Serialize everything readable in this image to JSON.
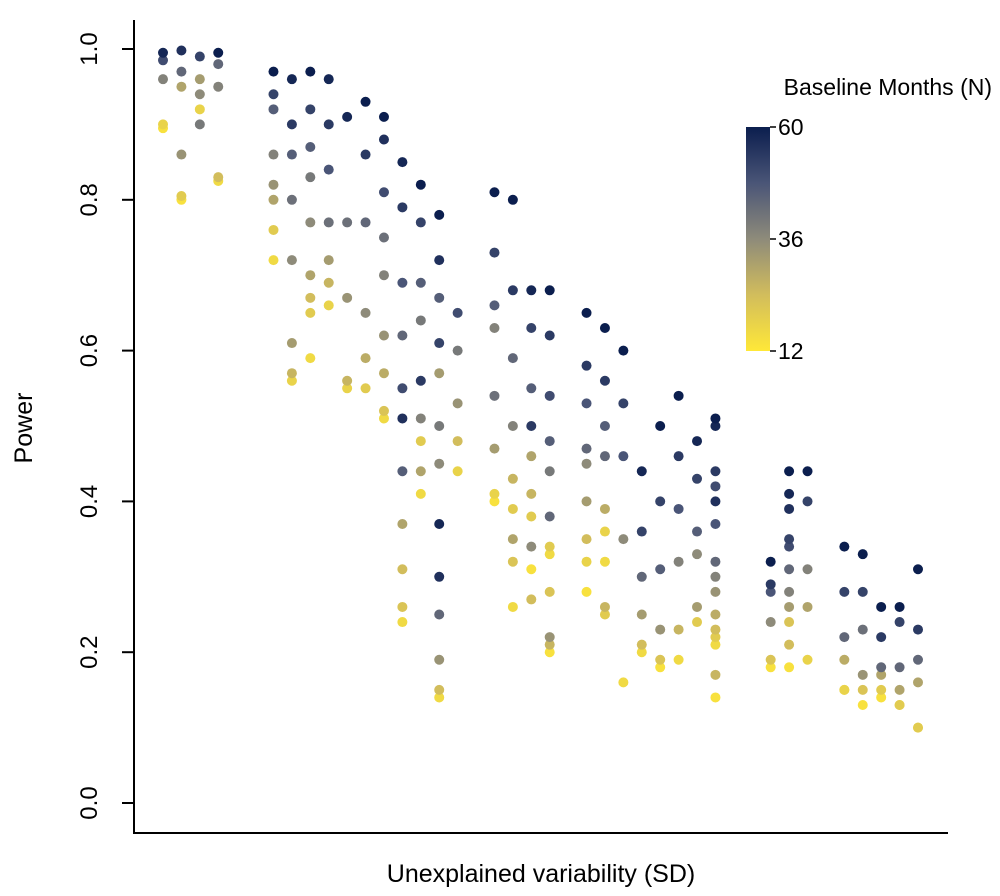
{
  "chart_data": {
    "type": "scatter",
    "title": "",
    "xlabel": "Unexplained variability (SD)",
    "ylabel": "Power",
    "ylim": [
      0,
      1.04
    ],
    "xlim": [
      0,
      42
    ],
    "y_ticks": [
      "0.0",
      "0.2",
      "0.4",
      "0.6",
      "0.8",
      "1.0"
    ],
    "y_tick_values": [
      0,
      0.2,
      0.4,
      0.6,
      0.8,
      1.0
    ],
    "grid": false,
    "legend": {
      "title": "Baseline Months (N)",
      "type": "colorbar",
      "placement": "top-right",
      "min": 12,
      "max": 60,
      "ticks": [
        "60",
        "36",
        "12"
      ],
      "tick_values": [
        60,
        36,
        12
      ],
      "colors": {
        "low": "#ffe838",
        "mid": "#8e8b7a",
        "high": "#0b1e4e"
      }
    },
    "color_variable": "Baseline Months (N)",
    "points": [
      {
        "x": 1,
        "y": 0.995,
        "n": 58
      },
      {
        "x": 1,
        "y": 0.985,
        "n": 50
      },
      {
        "x": 1,
        "y": 0.96,
        "n": 38
      },
      {
        "x": 1,
        "y": 0.9,
        "n": 18
      },
      {
        "x": 1,
        "y": 0.895,
        "n": 14
      },
      {
        "x": 2,
        "y": 0.998,
        "n": 56
      },
      {
        "x": 2,
        "y": 0.97,
        "n": 44
      },
      {
        "x": 2,
        "y": 0.95,
        "n": 30
      },
      {
        "x": 2,
        "y": 0.86,
        "n": 34
      },
      {
        "x": 2,
        "y": 0.805,
        "n": 20
      },
      {
        "x": 2,
        "y": 0.8,
        "n": 14
      },
      {
        "x": 3,
        "y": 0.99,
        "n": 52
      },
      {
        "x": 3,
        "y": 0.96,
        "n": 32
      },
      {
        "x": 3,
        "y": 0.94,
        "n": 36
      },
      {
        "x": 3,
        "y": 0.92,
        "n": 18
      },
      {
        "x": 3,
        "y": 0.9,
        "n": 40
      },
      {
        "x": 4,
        "y": 0.995,
        "n": 60
      },
      {
        "x": 4,
        "y": 0.98,
        "n": 44
      },
      {
        "x": 4,
        "y": 0.95,
        "n": 38
      },
      {
        "x": 4,
        "y": 0.83,
        "n": 24
      },
      {
        "x": 4,
        "y": 0.825,
        "n": 16
      },
      {
        "x": 7,
        "y": 0.97,
        "n": 60
      },
      {
        "x": 7,
        "y": 0.94,
        "n": 52
      },
      {
        "x": 7,
        "y": 0.92,
        "n": 46
      },
      {
        "x": 7,
        "y": 0.86,
        "n": 38
      },
      {
        "x": 7,
        "y": 0.82,
        "n": 34
      },
      {
        "x": 7,
        "y": 0.8,
        "n": 30
      },
      {
        "x": 7,
        "y": 0.76,
        "n": 20
      },
      {
        "x": 7,
        "y": 0.72,
        "n": 16
      },
      {
        "x": 8,
        "y": 0.96,
        "n": 58
      },
      {
        "x": 8,
        "y": 0.9,
        "n": 54
      },
      {
        "x": 8,
        "y": 0.86,
        "n": 46
      },
      {
        "x": 8,
        "y": 0.8,
        "n": 42
      },
      {
        "x": 8,
        "y": 0.72,
        "n": 36
      },
      {
        "x": 8,
        "y": 0.61,
        "n": 32
      },
      {
        "x": 8,
        "y": 0.57,
        "n": 26
      },
      {
        "x": 8,
        "y": 0.56,
        "n": 18
      },
      {
        "x": 9,
        "y": 0.97,
        "n": 60
      },
      {
        "x": 9,
        "y": 0.92,
        "n": 52
      },
      {
        "x": 9,
        "y": 0.87,
        "n": 46
      },
      {
        "x": 9,
        "y": 0.83,
        "n": 40
      },
      {
        "x": 9,
        "y": 0.77,
        "n": 36
      },
      {
        "x": 9,
        "y": 0.7,
        "n": 30
      },
      {
        "x": 9,
        "y": 0.67,
        "n": 24
      },
      {
        "x": 9,
        "y": 0.65,
        "n": 20
      },
      {
        "x": 9,
        "y": 0.59,
        "n": 16
      },
      {
        "x": 10,
        "y": 0.96,
        "n": 58
      },
      {
        "x": 10,
        "y": 0.9,
        "n": 54
      },
      {
        "x": 10,
        "y": 0.84,
        "n": 48
      },
      {
        "x": 10,
        "y": 0.77,
        "n": 42
      },
      {
        "x": 10,
        "y": 0.72,
        "n": 32
      },
      {
        "x": 10,
        "y": 0.69,
        "n": 26
      },
      {
        "x": 10,
        "y": 0.66,
        "n": 18
      },
      {
        "x": 11,
        "y": 0.91,
        "n": 58
      },
      {
        "x": 11,
        "y": 0.77,
        "n": 42
      },
      {
        "x": 11,
        "y": 0.67,
        "n": 34
      },
      {
        "x": 11,
        "y": 0.56,
        "n": 26
      },
      {
        "x": 11,
        "y": 0.55,
        "n": 18
      },
      {
        "x": 12,
        "y": 0.93,
        "n": 60
      },
      {
        "x": 12,
        "y": 0.86,
        "n": 54
      },
      {
        "x": 12,
        "y": 0.77,
        "n": 44
      },
      {
        "x": 12,
        "y": 0.65,
        "n": 36
      },
      {
        "x": 12,
        "y": 0.59,
        "n": 28
      },
      {
        "x": 12,
        "y": 0.55,
        "n": 20
      },
      {
        "x": 13,
        "y": 0.91,
        "n": 60
      },
      {
        "x": 13,
        "y": 0.88,
        "n": 56
      },
      {
        "x": 13,
        "y": 0.81,
        "n": 50
      },
      {
        "x": 13,
        "y": 0.75,
        "n": 42
      },
      {
        "x": 13,
        "y": 0.7,
        "n": 38
      },
      {
        "x": 13,
        "y": 0.62,
        "n": 34
      },
      {
        "x": 13,
        "y": 0.57,
        "n": 28
      },
      {
        "x": 13,
        "y": 0.52,
        "n": 22
      },
      {
        "x": 13,
        "y": 0.51,
        "n": 16
      },
      {
        "x": 14,
        "y": 0.85,
        "n": 58
      },
      {
        "x": 14,
        "y": 0.79,
        "n": 54
      },
      {
        "x": 14,
        "y": 0.69,
        "n": 48
      },
      {
        "x": 14,
        "y": 0.62,
        "n": 44
      },
      {
        "x": 14,
        "y": 0.55,
        "n": 50
      },
      {
        "x": 14,
        "y": 0.51,
        "n": 56
      },
      {
        "x": 14,
        "y": 0.44,
        "n": 46
      },
      {
        "x": 14,
        "y": 0.37,
        "n": 30
      },
      {
        "x": 14,
        "y": 0.31,
        "n": 24
      },
      {
        "x": 14,
        "y": 0.26,
        "n": 22
      },
      {
        "x": 14,
        "y": 0.24,
        "n": 16
      },
      {
        "x": 15,
        "y": 0.82,
        "n": 60
      },
      {
        "x": 15,
        "y": 0.77,
        "n": 52
      },
      {
        "x": 15,
        "y": 0.69,
        "n": 46
      },
      {
        "x": 15,
        "y": 0.64,
        "n": 40
      },
      {
        "x": 15,
        "y": 0.56,
        "n": 54
      },
      {
        "x": 15,
        "y": 0.51,
        "n": 38
      },
      {
        "x": 15,
        "y": 0.48,
        "n": 20
      },
      {
        "x": 15,
        "y": 0.44,
        "n": 30
      },
      {
        "x": 15,
        "y": 0.41,
        "n": 16
      },
      {
        "x": 16,
        "y": 0.78,
        "n": 60
      },
      {
        "x": 16,
        "y": 0.72,
        "n": 56
      },
      {
        "x": 16,
        "y": 0.67,
        "n": 46
      },
      {
        "x": 16,
        "y": 0.61,
        "n": 52
      },
      {
        "x": 16,
        "y": 0.57,
        "n": 32
      },
      {
        "x": 16,
        "y": 0.5,
        "n": 40
      },
      {
        "x": 16,
        "y": 0.45,
        "n": 36
      },
      {
        "x": 16,
        "y": 0.37,
        "n": 58
      },
      {
        "x": 16,
        "y": 0.3,
        "n": 56
      },
      {
        "x": 16,
        "y": 0.25,
        "n": 44
      },
      {
        "x": 16,
        "y": 0.19,
        "n": 34
      },
      {
        "x": 16,
        "y": 0.15,
        "n": 24
      },
      {
        "x": 16,
        "y": 0.14,
        "n": 16
      },
      {
        "x": 17,
        "y": 0.65,
        "n": 50
      },
      {
        "x": 17,
        "y": 0.6,
        "n": 40
      },
      {
        "x": 17,
        "y": 0.53,
        "n": 34
      },
      {
        "x": 17,
        "y": 0.48,
        "n": 24
      },
      {
        "x": 17,
        "y": 0.44,
        "n": 18
      },
      {
        "x": 19,
        "y": 0.81,
        "n": 60
      },
      {
        "x": 19,
        "y": 0.73,
        "n": 52
      },
      {
        "x": 19,
        "y": 0.66,
        "n": 46
      },
      {
        "x": 19,
        "y": 0.63,
        "n": 38
      },
      {
        "x": 19,
        "y": 0.54,
        "n": 42
      },
      {
        "x": 19,
        "y": 0.47,
        "n": 32
      },
      {
        "x": 19,
        "y": 0.41,
        "n": 18
      },
      {
        "x": 19,
        "y": 0.4,
        "n": 14
      },
      {
        "x": 20,
        "y": 0.8,
        "n": 60
      },
      {
        "x": 20,
        "y": 0.68,
        "n": 54
      },
      {
        "x": 20,
        "y": 0.59,
        "n": 44
      },
      {
        "x": 20,
        "y": 0.5,
        "n": 38
      },
      {
        "x": 20,
        "y": 0.43,
        "n": 26
      },
      {
        "x": 20,
        "y": 0.39,
        "n": 20
      },
      {
        "x": 20,
        "y": 0.35,
        "n": 30
      },
      {
        "x": 20,
        "y": 0.32,
        "n": 22
      },
      {
        "x": 20,
        "y": 0.26,
        "n": 16
      },
      {
        "x": 21,
        "y": 0.68,
        "n": 58
      },
      {
        "x": 21,
        "y": 0.63,
        "n": 52
      },
      {
        "x": 21,
        "y": 0.55,
        "n": 46
      },
      {
        "x": 21,
        "y": 0.5,
        "n": 54
      },
      {
        "x": 21,
        "y": 0.46,
        "n": 30
      },
      {
        "x": 21,
        "y": 0.41,
        "n": 26
      },
      {
        "x": 21,
        "y": 0.38,
        "n": 20
      },
      {
        "x": 21,
        "y": 0.34,
        "n": 36
      },
      {
        "x": 21,
        "y": 0.31,
        "n": 14
      },
      {
        "x": 21,
        "y": 0.27,
        "n": 24
      },
      {
        "x": 22,
        "y": 0.68,
        "n": 60
      },
      {
        "x": 22,
        "y": 0.62,
        "n": 54
      },
      {
        "x": 22,
        "y": 0.54,
        "n": 50
      },
      {
        "x": 22,
        "y": 0.48,
        "n": 46
      },
      {
        "x": 22,
        "y": 0.44,
        "n": 40
      },
      {
        "x": 22,
        "y": 0.38,
        "n": 44
      },
      {
        "x": 22,
        "y": 0.34,
        "n": 20
      },
      {
        "x": 22,
        "y": 0.33,
        "n": 16
      },
      {
        "x": 22,
        "y": 0.28,
        "n": 22
      },
      {
        "x": 22,
        "y": 0.22,
        "n": 34
      },
      {
        "x": 22,
        "y": 0.21,
        "n": 26
      },
      {
        "x": 22,
        "y": 0.2,
        "n": 14
      },
      {
        "x": 24,
        "y": 0.65,
        "n": 60
      },
      {
        "x": 24,
        "y": 0.58,
        "n": 54
      },
      {
        "x": 24,
        "y": 0.53,
        "n": 48
      },
      {
        "x": 24,
        "y": 0.47,
        "n": 44
      },
      {
        "x": 24,
        "y": 0.45,
        "n": 36
      },
      {
        "x": 24,
        "y": 0.4,
        "n": 32
      },
      {
        "x": 24,
        "y": 0.35,
        "n": 24
      },
      {
        "x": 24,
        "y": 0.32,
        "n": 18
      },
      {
        "x": 24,
        "y": 0.28,
        "n": 14
      },
      {
        "x": 25,
        "y": 0.63,
        "n": 60
      },
      {
        "x": 25,
        "y": 0.56,
        "n": 54
      },
      {
        "x": 25,
        "y": 0.5,
        "n": 46
      },
      {
        "x": 25,
        "y": 0.46,
        "n": 44
      },
      {
        "x": 25,
        "y": 0.39,
        "n": 28
      },
      {
        "x": 25,
        "y": 0.36,
        "n": 18
      },
      {
        "x": 25,
        "y": 0.32,
        "n": 16
      },
      {
        "x": 25,
        "y": 0.26,
        "n": 26
      },
      {
        "x": 25,
        "y": 0.25,
        "n": 20
      },
      {
        "x": 26,
        "y": 0.6,
        "n": 60
      },
      {
        "x": 26,
        "y": 0.53,
        "n": 52
      },
      {
        "x": 26,
        "y": 0.46,
        "n": 48
      },
      {
        "x": 26,
        "y": 0.35,
        "n": 36
      },
      {
        "x": 26,
        "y": 0.16,
        "n": 16
      },
      {
        "x": 27,
        "y": 0.44,
        "n": 58
      },
      {
        "x": 27,
        "y": 0.36,
        "n": 52
      },
      {
        "x": 27,
        "y": 0.3,
        "n": 44
      },
      {
        "x": 27,
        "y": 0.25,
        "n": 32
      },
      {
        "x": 27,
        "y": 0.21,
        "n": 24
      },
      {
        "x": 27,
        "y": 0.2,
        "n": 16
      },
      {
        "x": 28,
        "y": 0.5,
        "n": 60
      },
      {
        "x": 28,
        "y": 0.4,
        "n": 52
      },
      {
        "x": 28,
        "y": 0.31,
        "n": 46
      },
      {
        "x": 28,
        "y": 0.23,
        "n": 34
      },
      {
        "x": 28,
        "y": 0.19,
        "n": 22
      },
      {
        "x": 28,
        "y": 0.18,
        "n": 14
      },
      {
        "x": 29,
        "y": 0.54,
        "n": 60
      },
      {
        "x": 29,
        "y": 0.46,
        "n": 54
      },
      {
        "x": 29,
        "y": 0.39,
        "n": 48
      },
      {
        "x": 29,
        "y": 0.32,
        "n": 38
      },
      {
        "x": 29,
        "y": 0.23,
        "n": 26
      },
      {
        "x": 29,
        "y": 0.19,
        "n": 16
      },
      {
        "x": 30,
        "y": 0.48,
        "n": 58
      },
      {
        "x": 30,
        "y": 0.43,
        "n": 52
      },
      {
        "x": 30,
        "y": 0.36,
        "n": 46
      },
      {
        "x": 30,
        "y": 0.33,
        "n": 36
      },
      {
        "x": 30,
        "y": 0.26,
        "n": 32
      },
      {
        "x": 30,
        "y": 0.24,
        "n": 20
      },
      {
        "x": 31,
        "y": 0.51,
        "n": 60
      },
      {
        "x": 31,
        "y": 0.5,
        "n": 58
      },
      {
        "x": 31,
        "y": 0.44,
        "n": 54
      },
      {
        "x": 31,
        "y": 0.42,
        "n": 50
      },
      {
        "x": 31,
        "y": 0.4,
        "n": 56
      },
      {
        "x": 31,
        "y": 0.37,
        "n": 48
      },
      {
        "x": 31,
        "y": 0.32,
        "n": 44
      },
      {
        "x": 31,
        "y": 0.3,
        "n": 38
      },
      {
        "x": 31,
        "y": 0.28,
        "n": 34
      },
      {
        "x": 31,
        "y": 0.25,
        "n": 28
      },
      {
        "x": 31,
        "y": 0.23,
        "n": 24
      },
      {
        "x": 31,
        "y": 0.22,
        "n": 20
      },
      {
        "x": 31,
        "y": 0.21,
        "n": 16
      },
      {
        "x": 31,
        "y": 0.17,
        "n": 26
      },
      {
        "x": 31,
        "y": 0.14,
        "n": 14
      },
      {
        "x": 34,
        "y": 0.32,
        "n": 60
      },
      {
        "x": 34,
        "y": 0.29,
        "n": 54
      },
      {
        "x": 34,
        "y": 0.28,
        "n": 48
      },
      {
        "x": 34,
        "y": 0.24,
        "n": 36
      },
      {
        "x": 34,
        "y": 0.19,
        "n": 22
      },
      {
        "x": 34,
        "y": 0.18,
        "n": 14
      },
      {
        "x": 35,
        "y": 0.44,
        "n": 60
      },
      {
        "x": 35,
        "y": 0.41,
        "n": 58
      },
      {
        "x": 35,
        "y": 0.39,
        "n": 56
      },
      {
        "x": 35,
        "y": 0.35,
        "n": 52
      },
      {
        "x": 35,
        "y": 0.34,
        "n": 50
      },
      {
        "x": 35,
        "y": 0.31,
        "n": 44
      },
      {
        "x": 35,
        "y": 0.28,
        "n": 38
      },
      {
        "x": 35,
        "y": 0.26,
        "n": 32
      },
      {
        "x": 35,
        "y": 0.24,
        "n": 22
      },
      {
        "x": 35,
        "y": 0.21,
        "n": 24
      },
      {
        "x": 35,
        "y": 0.18,
        "n": 14
      },
      {
        "x": 36,
        "y": 0.44,
        "n": 60
      },
      {
        "x": 36,
        "y": 0.4,
        "n": 52
      },
      {
        "x": 36,
        "y": 0.31,
        "n": 38
      },
      {
        "x": 36,
        "y": 0.26,
        "n": 30
      },
      {
        "x": 36,
        "y": 0.19,
        "n": 18
      },
      {
        "x": 38,
        "y": 0.34,
        "n": 60
      },
      {
        "x": 38,
        "y": 0.28,
        "n": 52
      },
      {
        "x": 38,
        "y": 0.22,
        "n": 44
      },
      {
        "x": 38,
        "y": 0.19,
        "n": 28
      },
      {
        "x": 38,
        "y": 0.15,
        "n": 18
      },
      {
        "x": 38,
        "y": 0.15,
        "n": 14
      },
      {
        "x": 39,
        "y": 0.33,
        "n": 60
      },
      {
        "x": 39,
        "y": 0.28,
        "n": 52
      },
      {
        "x": 39,
        "y": 0.23,
        "n": 42
      },
      {
        "x": 39,
        "y": 0.17,
        "n": 34
      },
      {
        "x": 39,
        "y": 0.15,
        "n": 22
      },
      {
        "x": 39,
        "y": 0.13,
        "n": 14
      },
      {
        "x": 40,
        "y": 0.26,
        "n": 60
      },
      {
        "x": 40,
        "y": 0.22,
        "n": 54
      },
      {
        "x": 40,
        "y": 0.18,
        "n": 44
      },
      {
        "x": 40,
        "y": 0.17,
        "n": 30
      },
      {
        "x": 40,
        "y": 0.15,
        "n": 20
      },
      {
        "x": 40,
        "y": 0.14,
        "n": 14
      },
      {
        "x": 41,
        "y": 0.26,
        "n": 60
      },
      {
        "x": 41,
        "y": 0.24,
        "n": 52
      },
      {
        "x": 41,
        "y": 0.18,
        "n": 44
      },
      {
        "x": 41,
        "y": 0.15,
        "n": 30
      },
      {
        "x": 41,
        "y": 0.13,
        "n": 20
      },
      {
        "x": 41,
        "y": 0.13,
        "n": 14
      },
      {
        "x": 42,
        "y": 0.31,
        "n": 60
      },
      {
        "x": 42,
        "y": 0.23,
        "n": 54
      },
      {
        "x": 42,
        "y": 0.19,
        "n": 44
      },
      {
        "x": 42,
        "y": 0.16,
        "n": 30
      },
      {
        "x": 42,
        "y": 0.1,
        "n": 20
      },
      {
        "x": 42,
        "y": 0.1,
        "n": 14
      }
    ]
  }
}
